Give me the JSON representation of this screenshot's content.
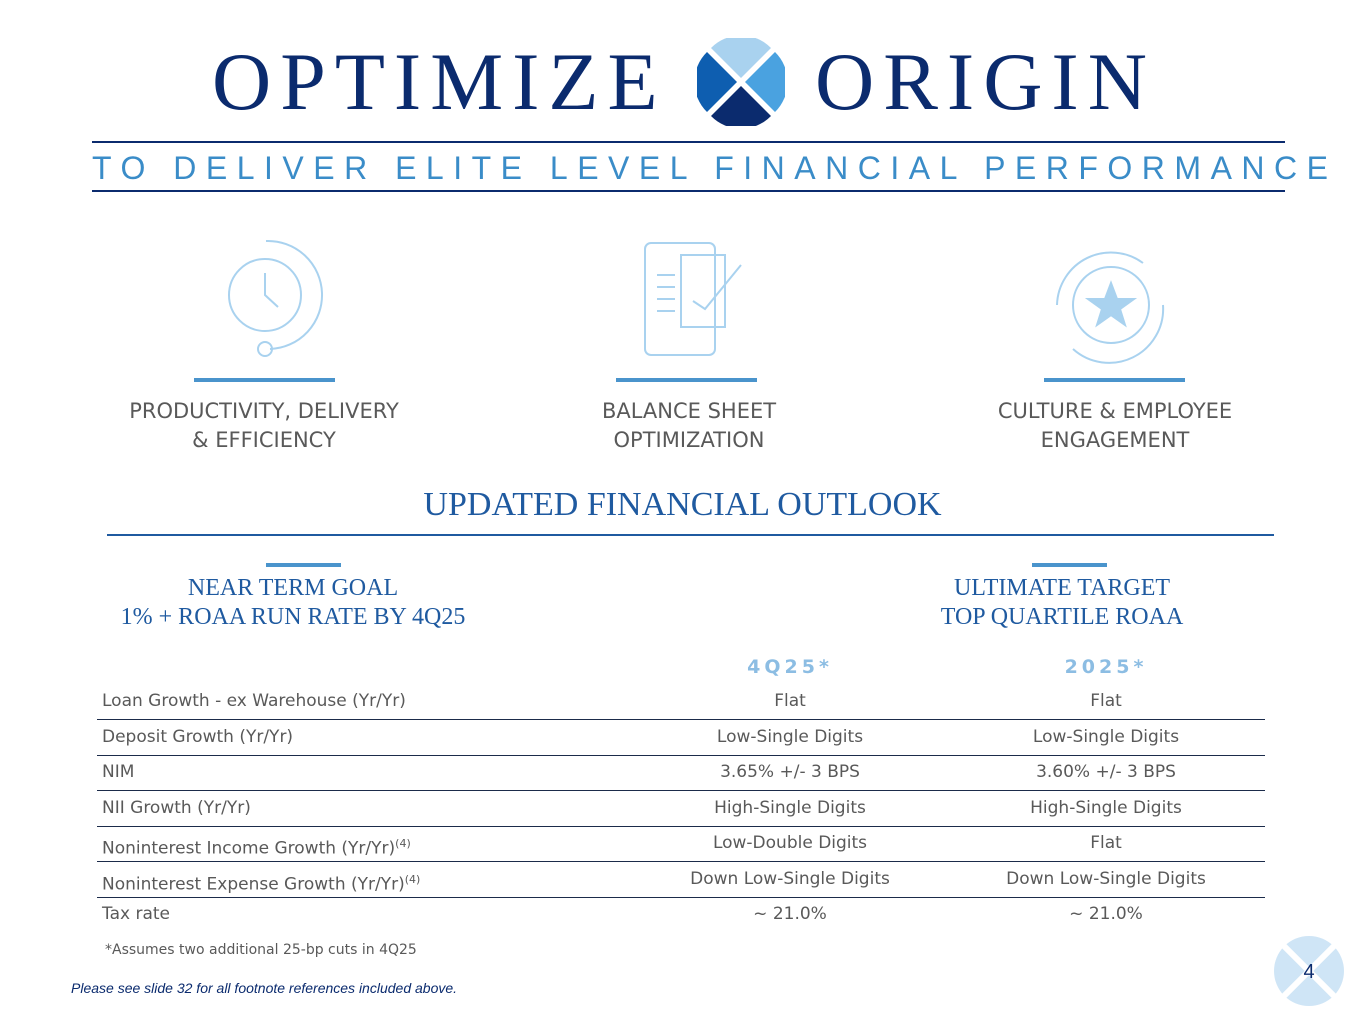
{
  "header": {
    "title_left": "OPTIMIZE",
    "title_right": "ORIGIN",
    "subtitle": "TO DELIVER ELITE LEVEL FINANCIAL PERFORMANCE"
  },
  "pillars": [
    {
      "lines": [
        "PRODUCTIVITY, DELIVERY",
        "& EFFICIENCY"
      ]
    },
    {
      "lines": [
        "BALANCE SHEET",
        "OPTIMIZATION"
      ]
    },
    {
      "lines": [
        "CULTURE & EMPLOYEE",
        "ENGAGEMENT"
      ]
    }
  ],
  "outlook": {
    "title": "UPDATED FINANCIAL OUTLOOK",
    "goals": [
      {
        "lines": [
          "NEAR TERM GOAL",
          "1% + ROAA RUN RATE BY 4Q25"
        ]
      },
      {
        "lines": [
          "ULTIMATE TARGET",
          "TOP QUARTILE ROAA"
        ]
      }
    ]
  },
  "table": {
    "columns": [
      "4Q25*",
      "2025*"
    ],
    "rows": [
      {
        "label": "Loan Growth - ex Warehouse (Yr/Yr)",
        "values": [
          "Flat",
          "Flat"
        ]
      },
      {
        "label": "Deposit Growth  (Yr/Yr)",
        "values": [
          "Low-Single Digits",
          "Low-Single Digits"
        ]
      },
      {
        "label": "NIM",
        "values": [
          "3.65% +/- 3 BPS",
          "3.60% +/- 3 BPS"
        ]
      },
      {
        "label": "NII Growth (Yr/Yr)",
        "values": [
          "High-Single Digits",
          "High-Single Digits"
        ]
      },
      {
        "label": "Noninterest Income Growth (Yr/Yr)",
        "note": "(4)",
        "values": [
          "Low-Double Digits",
          "Flat"
        ]
      },
      {
        "label": "Noninterest Expense Growth (Yr/Yr)",
        "note": "(4)",
        "values": [
          "Down Low-Single Digits",
          "Down Low-Single Digits"
        ]
      },
      {
        "label": "Tax rate",
        "values": [
          "~ 21.0%",
          "~ 21.0%"
        ]
      }
    ],
    "footnote": "*Assumes two additional 25-bp cuts in 4Q25"
  },
  "footer": {
    "disclaimer": "Please see slide 32 for all footnote references included above.",
    "page": "4"
  }
}
